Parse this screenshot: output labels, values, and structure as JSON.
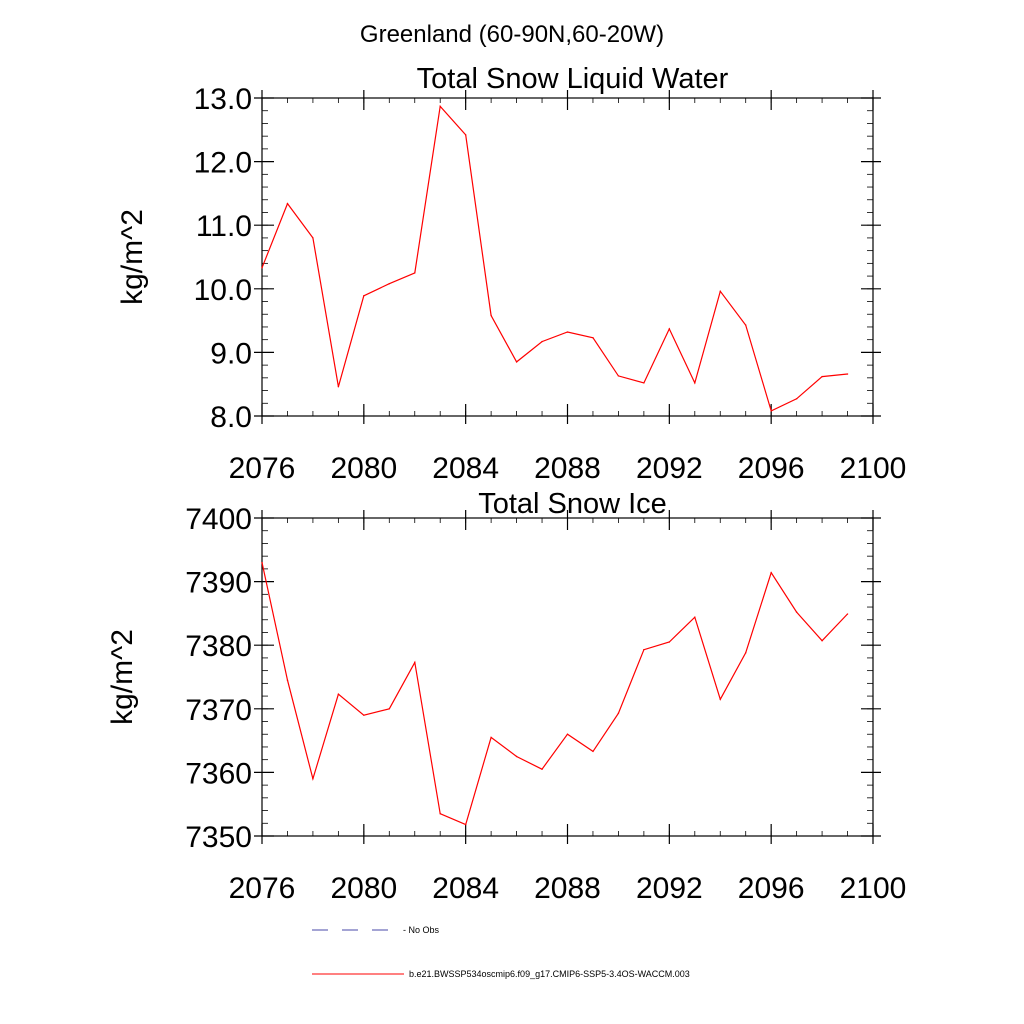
{
  "figure": {
    "main_title": "Greenland (60-90N,60-20W)"
  },
  "chart_data": [
    {
      "type": "line",
      "title": "Total Snow Liquid Water",
      "xlabel": "",
      "ylabel": "kg/m^2",
      "xlim": [
        2076,
        2100
      ],
      "ylim": [
        8.0,
        13.0
      ],
      "x_ticks": [
        2076,
        2080,
        2084,
        2088,
        2092,
        2096,
        2100
      ],
      "x_tick_labels": [
        "2076",
        "2080",
        "2084",
        "2088",
        "2092",
        "2096",
        "2100"
      ],
      "y_ticks": [
        8.0,
        9.0,
        10.0,
        11.0,
        12.0,
        13.0
      ],
      "y_tick_labels": [
        "8.0",
        "9.0",
        "10.0",
        "11.0",
        "12.0",
        "13.0"
      ],
      "y_minor_step": 0.2,
      "x_minor_step": 1,
      "series": [
        {
          "name": "b.e21.BWSSP534oscmip6.f09_g17.CMIP6-SSP5-3.4OS-WACCM.003",
          "color": "#ff0000",
          "x": [
            2076,
            2077,
            2078,
            2079,
            2080,
            2081,
            2082,
            2083,
            2084,
            2085,
            2086,
            2087,
            2088,
            2089,
            2090,
            2091,
            2092,
            2093,
            2094,
            2095,
            2096,
            2097,
            2098,
            2099
          ],
          "values": [
            10.33,
            11.34,
            10.8,
            8.46,
            9.89,
            10.08,
            10.25,
            12.87,
            12.42,
            9.58,
            8.85,
            9.17,
            9.32,
            9.23,
            8.63,
            8.52,
            9.37,
            8.52,
            9.96,
            9.43,
            8.08,
            8.27,
            8.62,
            8.66
          ]
        }
      ]
    },
    {
      "type": "line",
      "title": "Total Snow Ice",
      "xlabel": "",
      "ylabel": "kg/m^2",
      "xlim": [
        2076,
        2100
      ],
      "ylim": [
        7350,
        7400
      ],
      "x_ticks": [
        2076,
        2080,
        2084,
        2088,
        2092,
        2096,
        2100
      ],
      "x_tick_labels": [
        "2076",
        "2080",
        "2084",
        "2088",
        "2092",
        "2096",
        "2100"
      ],
      "y_ticks": [
        7350,
        7360,
        7370,
        7380,
        7390,
        7400
      ],
      "y_tick_labels": [
        "7350",
        "7360",
        "7370",
        "7380",
        "7390",
        "7400"
      ],
      "y_minor_step": 2,
      "x_minor_step": 1,
      "series": [
        {
          "name": "b.e21.BWSSP534oscmip6.f09_g17.CMIP6-SSP5-3.4OS-WACCM.003",
          "color": "#ff0000",
          "x": [
            2076,
            2077,
            2078,
            2079,
            2080,
            2081,
            2082,
            2083,
            2084,
            2085,
            2086,
            2087,
            2088,
            2089,
            2090,
            2091,
            2092,
            2093,
            2094,
            2095,
            2096,
            2097,
            2098,
            2099
          ],
          "values": [
            7393.0,
            7374.5,
            7359.0,
            7372.3,
            7369.0,
            7370.0,
            7377.3,
            7353.5,
            7351.8,
            7365.5,
            7362.5,
            7360.5,
            7366.0,
            7363.3,
            7369.3,
            7379.3,
            7380.5,
            7384.4,
            7371.5,
            7378.8,
            7391.4,
            7385.2,
            7380.7,
            7384.9
          ]
        }
      ]
    }
  ],
  "legend": {
    "items": [
      {
        "label": "No Obs",
        "color": "#4a4aa8",
        "style": "dashed"
      },
      {
        "label": "b.e21.BWSSP534oscmip6.f09_g17.CMIP6-SSP5-3.4OS-WACCM.003",
        "color": "#ff0000",
        "style": "solid"
      }
    ]
  }
}
